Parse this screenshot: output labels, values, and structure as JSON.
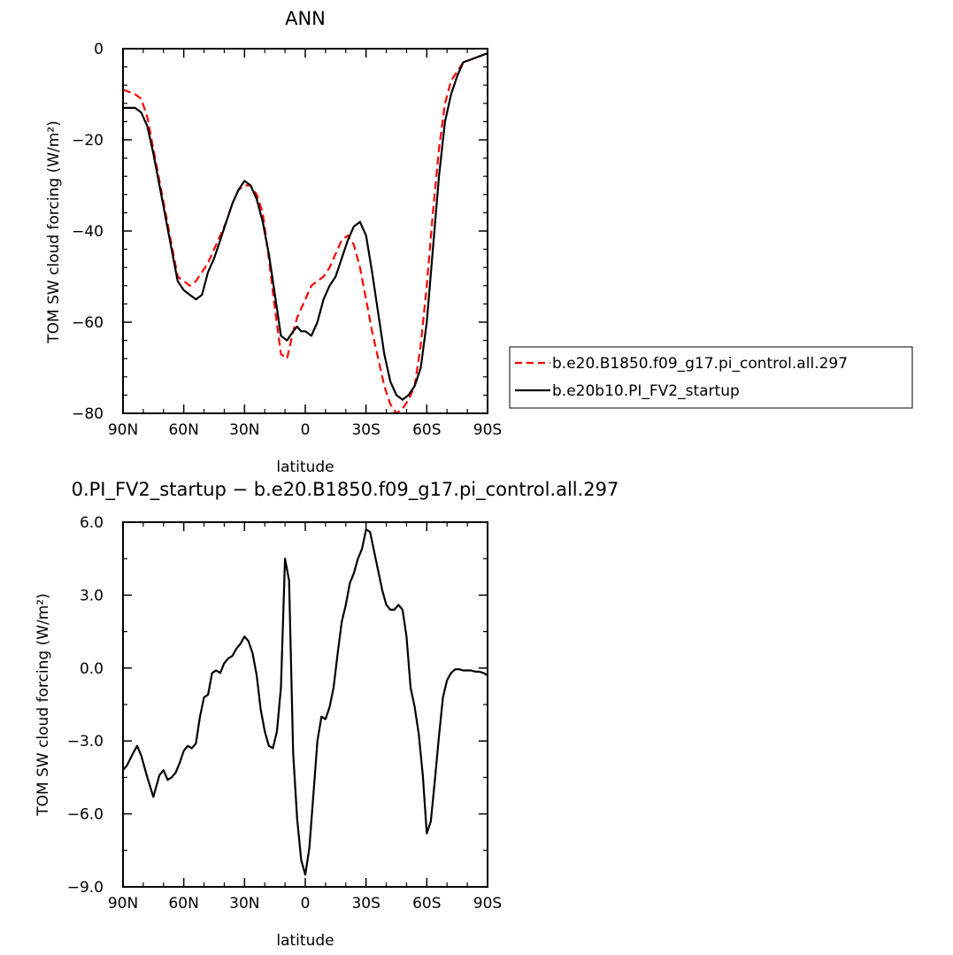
{
  "chart_data": [
    {
      "type": "line",
      "title": "ANN",
      "xlabel": "latitude",
      "ylabel": "TOM SW cloud forcing (W/m²)",
      "xlim": [
        90,
        -90
      ],
      "ylim": [
        -80,
        0
      ],
      "x_ticks": [
        {
          "value": 90,
          "label": "90N"
        },
        {
          "value": 60,
          "label": "60N"
        },
        {
          "value": 30,
          "label": "30N"
        },
        {
          "value": 0,
          "label": "0"
        },
        {
          "value": -30,
          "label": "30S"
        },
        {
          "value": -60,
          "label": "60S"
        },
        {
          "value": -90,
          "label": "90S"
        }
      ],
      "y_ticks": [
        {
          "value": 0,
          "label": "0"
        },
        {
          "value": -20,
          "label": "−20"
        },
        {
          "value": -40,
          "label": "−40"
        },
        {
          "value": -60,
          "label": "−60"
        },
        {
          "value": -80,
          "label": "−80"
        }
      ],
      "legend_position": "right",
      "series": [
        {
          "name": "b.e20.B1850.f09_g17.pi_control.all.297",
          "color": "#ff0000",
          "dash": "dashed",
          "x": [
            90,
            87,
            84,
            81,
            78,
            75,
            72,
            69,
            66,
            63,
            60,
            57,
            54,
            51,
            48,
            45,
            42,
            39,
            36,
            33,
            30,
            27,
            24,
            21,
            18,
            15,
            12,
            9,
            6,
            4,
            2,
            0,
            -3,
            -6,
            -9,
            -12,
            -15,
            -18,
            -21,
            -24,
            -27,
            -30,
            -33,
            -36,
            -39,
            -42,
            -45,
            -48,
            -51,
            -54,
            -57,
            -60,
            -63,
            -66,
            -69,
            -72,
            -75,
            -78,
            -81,
            -84,
            -87,
            -90
          ],
          "y": [
            -9,
            -9.5,
            -10,
            -11,
            -15,
            -22,
            -29,
            -36,
            -43,
            -50,
            -51,
            -52,
            -51,
            -49,
            -47,
            -44,
            -41,
            -38,
            -34,
            -31,
            -30,
            -30,
            -32,
            -36,
            -46,
            -57,
            -67,
            -68,
            -62,
            -59,
            -57,
            -55,
            -52,
            -51,
            -50,
            -48,
            -45,
            -42,
            -41,
            -43,
            -48,
            -55,
            -62,
            -68,
            -74,
            -78,
            -80,
            -79,
            -77,
            -74,
            -65,
            -52,
            -36,
            -22,
            -12,
            -7,
            -5,
            -3,
            -2.5,
            -2,
            -1.5,
            -1
          ]
        },
        {
          "name": "b.e20b10.PI_FV2_startup",
          "color": "#000000",
          "dash": "solid",
          "x": [
            90,
            87,
            84,
            81,
            78,
            75,
            72,
            69,
            66,
            63,
            60,
            57,
            54,
            51,
            48,
            45,
            42,
            39,
            36,
            33,
            30,
            27,
            24,
            21,
            18,
            15,
            12,
            9,
            6,
            4,
            2,
            0,
            -3,
            -6,
            -9,
            -12,
            -15,
            -18,
            -21,
            -24,
            -27,
            -30,
            -33,
            -36,
            -39,
            -42,
            -45,
            -48,
            -51,
            -54,
            -57,
            -60,
            -63,
            -66,
            -69,
            -72,
            -75,
            -78,
            -81,
            -84,
            -87,
            -90
          ],
          "y": [
            -13,
            -13,
            -13,
            -14,
            -17,
            -23,
            -30,
            -37,
            -44,
            -51,
            -53,
            -54,
            -55,
            -54,
            -49,
            -46,
            -42,
            -38,
            -34,
            -31,
            -29,
            -30,
            -33,
            -38,
            -45,
            -54,
            -63,
            -64,
            -62,
            -61,
            -62,
            -62,
            -63,
            -60,
            -55,
            -52,
            -50,
            -46,
            -42,
            -39,
            -38,
            -41,
            -49,
            -58,
            -67,
            -73,
            -76,
            -77,
            -76,
            -74,
            -70,
            -60,
            -44,
            -28,
            -16,
            -10,
            -6,
            -3,
            -2.5,
            -2,
            -1.5,
            -1
          ]
        }
      ]
    },
    {
      "type": "line",
      "title": "0.PI_FV2_startup − b.e20.B1850.f09_g17.pi_control.all.297",
      "xlabel": "latitude",
      "ylabel": "TOM SW cloud forcing (W/m²)",
      "xlim": [
        90,
        -90
      ],
      "ylim": [
        -9,
        6
      ],
      "x_ticks": [
        {
          "value": 90,
          "label": "90N"
        },
        {
          "value": 60,
          "label": "60N"
        },
        {
          "value": 30,
          "label": "30N"
        },
        {
          "value": 0,
          "label": "0"
        },
        {
          "value": -30,
          "label": "30S"
        },
        {
          "value": -60,
          "label": "60S"
        },
        {
          "value": -90,
          "label": "90S"
        }
      ],
      "y_ticks": [
        {
          "value": 6,
          "label": "6.0"
        },
        {
          "value": 3,
          "label": "3.0"
        },
        {
          "value": 0,
          "label": "0.0"
        },
        {
          "value": -3,
          "label": "−3.0"
        },
        {
          "value": -6,
          "label": "−6.0"
        },
        {
          "value": -9,
          "label": "−9.0"
        }
      ],
      "series": [
        {
          "color": "#000000",
          "dash": "solid",
          "x": [
            90,
            88,
            85,
            83,
            81,
            78,
            75,
            72,
            70,
            68,
            66,
            64,
            62,
            60,
            58,
            56,
            54,
            52,
            50,
            48,
            46,
            44,
            42,
            40,
            38,
            36,
            34,
            32,
            30,
            28,
            26,
            24,
            22,
            20,
            18,
            16,
            14,
            12,
            10,
            8,
            6,
            4,
            2,
            0,
            -2,
            -4,
            -6,
            -8,
            -10,
            -12,
            -14,
            -16,
            -18,
            -20,
            -22,
            -24,
            -26,
            -28,
            -30,
            -32,
            -34,
            -36,
            -38,
            -40,
            -42,
            -44,
            -46,
            -48,
            -50,
            -52,
            -54,
            -56,
            -58,
            -60,
            -62,
            -64,
            -66,
            -68,
            -70,
            -72,
            -74,
            -76,
            -78,
            -80,
            -82,
            -84,
            -86,
            -88,
            -90
          ],
          "y": [
            -4.2,
            -4.0,
            -3.5,
            -3.2,
            -3.6,
            -4.5,
            -5.3,
            -4.4,
            -4.2,
            -4.6,
            -4.5,
            -4.3,
            -3.9,
            -3.4,
            -3.2,
            -3.3,
            -3.1,
            -2.0,
            -1.2,
            -1.1,
            -0.2,
            -0.1,
            -0.2,
            0.2,
            0.4,
            0.5,
            0.8,
            1.0,
            1.3,
            1.1,
            0.6,
            -0.3,
            -1.7,
            -2.6,
            -3.2,
            -3.3,
            -2.6,
            -0.8,
            4.5,
            3.6,
            -3.5,
            -6.2,
            -7.9,
            -8.5,
            -7.4,
            -5.2,
            -3.0,
            -2.0,
            -2.1,
            -1.6,
            -0.8,
            0.6,
            1.9,
            2.6,
            3.5,
            3.9,
            4.5,
            4.9,
            5.7,
            5.6,
            4.8,
            4.0,
            3.2,
            2.6,
            2.4,
            2.4,
            2.6,
            2.4,
            1.3,
            -0.8,
            -1.6,
            -2.7,
            -4.4,
            -6.8,
            -6.3,
            -4.6,
            -2.8,
            -1.2,
            -0.5,
            -0.2,
            -0.05,
            -0.05,
            -0.1,
            -0.1,
            -0.1,
            -0.15,
            -0.15,
            -0.2,
            -0.3
          ]
        }
      ]
    }
  ]
}
